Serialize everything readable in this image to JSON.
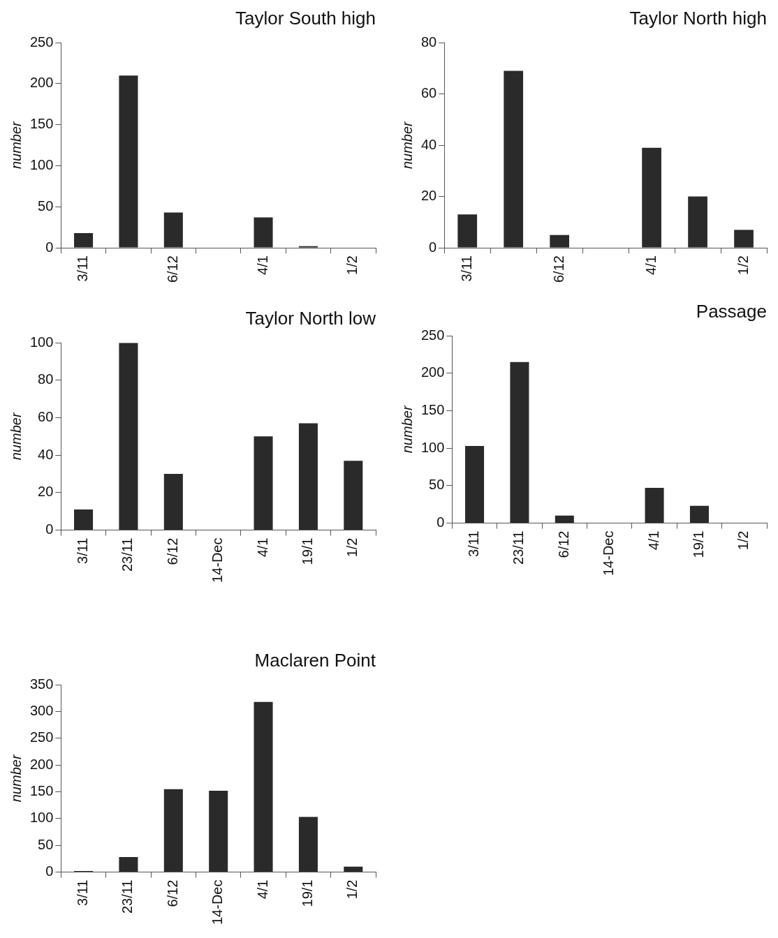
{
  "chart_data": [
    {
      "type": "bar",
      "title": "Taylor South high",
      "ylabel": "number",
      "categories": [
        "3/11",
        null,
        "6/12",
        null,
        "4/1",
        null,
        "1/2"
      ],
      "values": [
        18,
        210,
        43,
        0,
        37,
        2,
        0
      ],
      "color": "#2a2a2a",
      "ylim": [
        0,
        250
      ],
      "yticks": [
        0,
        50,
        100,
        150,
        200,
        250
      ],
      "grid": false,
      "legend": false
    },
    {
      "type": "bar",
      "title": "Taylor North high",
      "ylabel": "number",
      "categories": [
        "3/11",
        null,
        "6/12",
        null,
        "4/1",
        null,
        "1/2"
      ],
      "values": [
        13,
        69,
        5,
        0,
        39,
        20,
        7
      ],
      "color": "#2a2a2a",
      "ylim": [
        0,
        80
      ],
      "yticks": [
        0,
        20,
        40,
        60,
        80
      ],
      "grid": false,
      "legend": false
    },
    {
      "type": "bar",
      "title": "Taylor North low",
      "ylabel": "number",
      "categories": [
        "3/11",
        "23/11",
        "6/12",
        "14-Dec",
        "4/1",
        "19/1",
        "1/2"
      ],
      "values": [
        11,
        100,
        30,
        0,
        50,
        57,
        37
      ],
      "color": "#2a2a2a",
      "ylim": [
        0,
        100
      ],
      "yticks": [
        0,
        20,
        40,
        60,
        80,
        100
      ],
      "grid": false,
      "legend": false
    },
    {
      "type": "bar",
      "title": "Passage",
      "ylabel": "number",
      "categories": [
        "3/11",
        "23/11",
        "6/12",
        "14-Dec",
        "4/1",
        "19/1",
        "1/2"
      ],
      "values": [
        103,
        215,
        10,
        0,
        47,
        23,
        0
      ],
      "color": "#2a2a2a",
      "ylim": [
        0,
        250
      ],
      "yticks": [
        0,
        50,
        100,
        150,
        200,
        250
      ],
      "grid": false,
      "legend": false
    },
    {
      "type": "bar",
      "title": "Maclaren Point",
      "ylabel": "number",
      "categories": [
        "3/11",
        "23/11",
        "6/12",
        "14-Dec",
        "4/1",
        "19/1",
        "1/2"
      ],
      "values": [
        2,
        28,
        155,
        152,
        318,
        103,
        10
      ],
      "color": "#2a2a2a",
      "ylim": [
        0,
        350
      ],
      "yticks": [
        0,
        50,
        100,
        150,
        200,
        250,
        300,
        350
      ],
      "grid": false,
      "legend": false
    }
  ]
}
